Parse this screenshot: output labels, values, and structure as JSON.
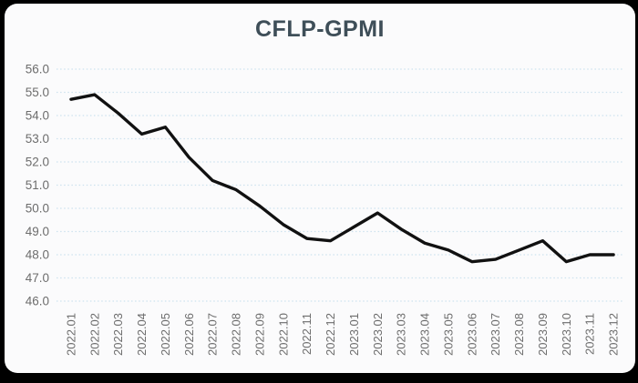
{
  "chart": {
    "title": "CFLP-GPMI"
  },
  "chart_data": {
    "type": "line",
    "title": "CFLP-GPMI",
    "categories": [
      "2022.01",
      "2022.02",
      "2022.03",
      "2022.04",
      "2022.05",
      "2022.06",
      "2022.07",
      "2022.08",
      "2022.09",
      "2022.10",
      "2022.11",
      "2022.12",
      "2023.01",
      "2023.02",
      "2023.03",
      "2023.04",
      "2023.05",
      "2023.06",
      "2023.07",
      "2023.08",
      "2023.09",
      "2023.10",
      "2023.11",
      "2023.12"
    ],
    "values": [
      54.7,
      54.9,
      54.1,
      53.2,
      53.5,
      52.2,
      51.2,
      50.8,
      50.1,
      49.3,
      48.7,
      48.6,
      49.2,
      49.8,
      49.1,
      48.5,
      48.2,
      47.7,
      47.8,
      48.2,
      48.6,
      47.7,
      48.0,
      48.0
    ],
    "ylim": [
      46.0,
      56.0
    ],
    "ytick_step": 1.0,
    "ytick_labels": [
      "56.0",
      "55.0",
      "54.0",
      "53.0",
      "52.0",
      "51.0",
      "50.0",
      "49.0",
      "48.0",
      "47.0",
      "46.0"
    ],
    "grid": true,
    "grid_style": "dotted",
    "legend_position": "none",
    "xlabel": "",
    "ylabel": "",
    "colors": {
      "line": "#111111",
      "grid": "#cde2ee",
      "axis_text": "#6d6d6d",
      "title": "#3e4e58",
      "card_background": "#fbfbfc",
      "page_background": "#000000"
    }
  }
}
